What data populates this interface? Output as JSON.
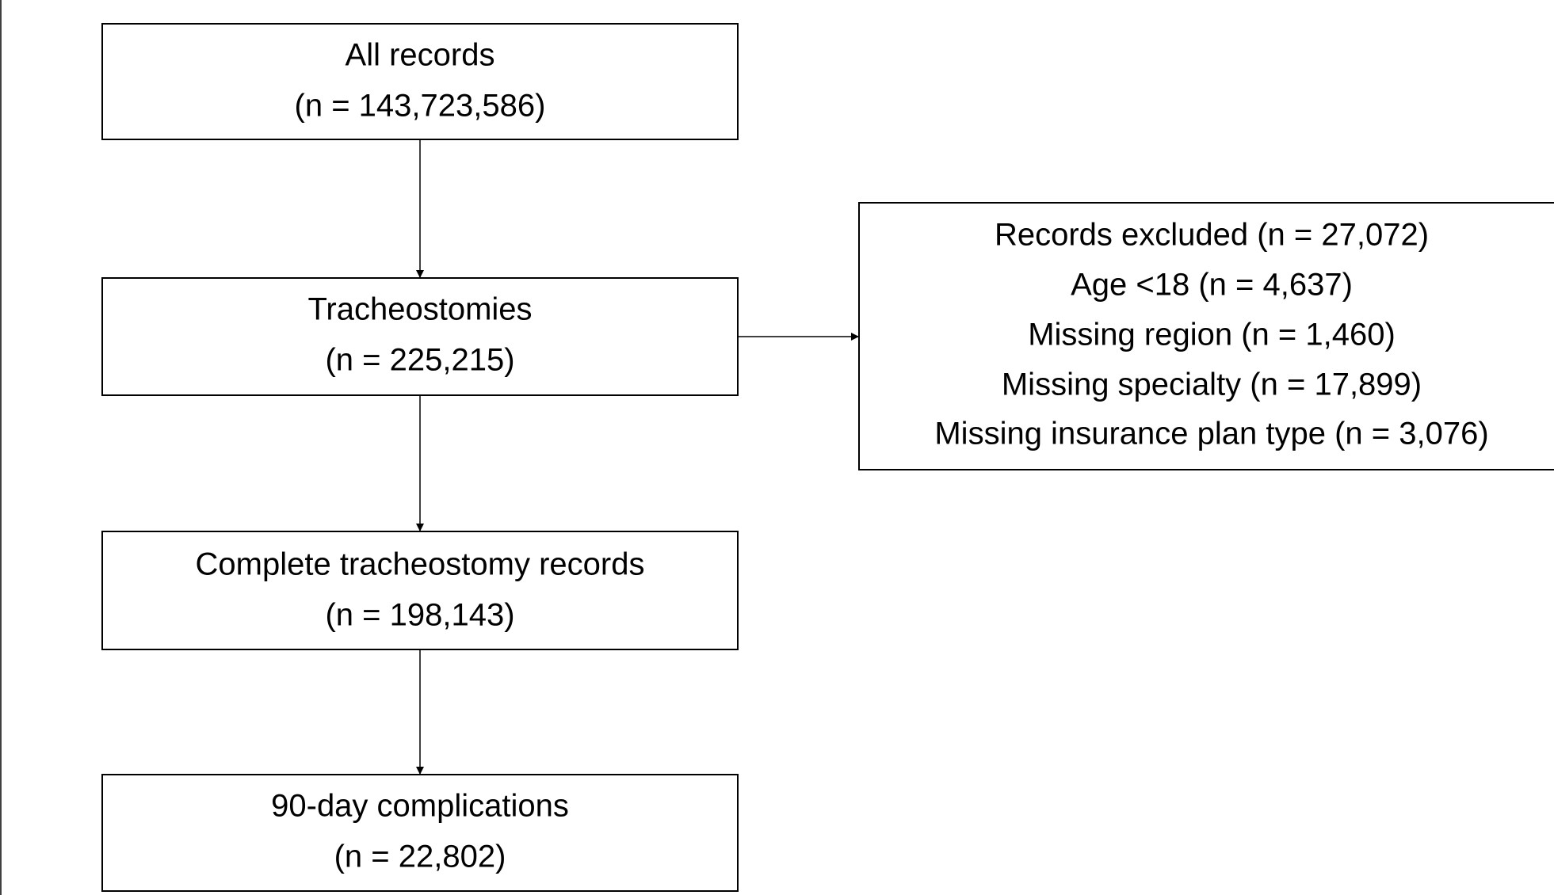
{
  "nodes": [
    {
      "lines": [
        "All records",
        "(n = 143,723,586)"
      ]
    },
    {
      "lines": [
        "Tracheostomies",
        "(n = 225,215)"
      ]
    },
    {
      "lines": [
        "Complete tracheostomy records",
        "(n = 198,143)"
      ]
    },
    {
      "lines": [
        "90-day complications",
        "(n = 22,802)"
      ]
    },
    {
      "lines": [
        "Records excluded (n = 27,072)",
        "Age <18 (n = 4,637)",
        "Missing region (n = 1,460)",
        "Missing specialty (n = 17,899)",
        "Missing insurance plan type (n = 3,076)"
      ]
    }
  ]
}
